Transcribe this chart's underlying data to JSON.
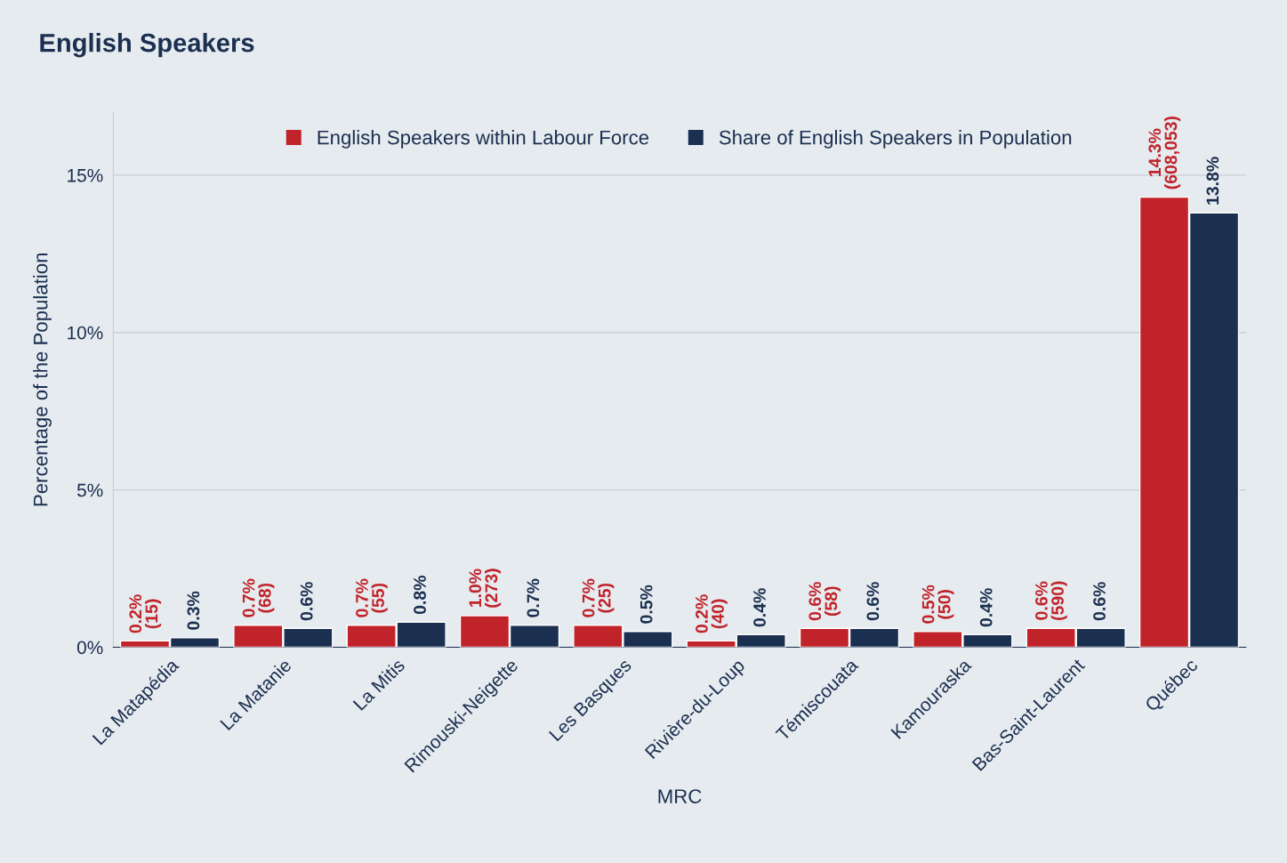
{
  "chart_data": {
    "type": "bar",
    "title": "English Speakers",
    "xlabel": "MRC",
    "ylabel": "Percentage of the Population",
    "categories": [
      "La Matapédia",
      "La Matanie",
      "La Mitis",
      "Rimouski-Neigette",
      "Les Basques",
      "Rivière-du-Loup",
      "Témiscouata",
      "Kamouraska",
      "Bas-Saint-Laurent",
      "Québec"
    ],
    "series": [
      {
        "name": "English Speakers within Labour Force",
        "color": "#c1232a",
        "values": [
          0.2,
          0.7,
          0.7,
          1.0,
          0.7,
          0.2,
          0.6,
          0.5,
          0.6,
          14.3
        ],
        "value_labels": [
          "0.2%\n(15)",
          "0.7%\n(68)",
          "0.7%\n(55)",
          "1.0%\n(273)",
          "0.7%\n(25)",
          "0.2%\n(40)",
          "0.6%\n(58)",
          "0.5%\n(50)",
          "0.6%\n(590)",
          "14.3%\n(608,053)"
        ]
      },
      {
        "name": "Share of English Speakers in Population",
        "color": "#1b2f50",
        "values": [
          0.3,
          0.6,
          0.8,
          0.7,
          0.5,
          0.4,
          0.6,
          0.4,
          0.6,
          13.8
        ],
        "value_labels": [
          "0.3%",
          "0.6%",
          "0.8%",
          "0.7%",
          "0.5%",
          "0.4%",
          "0.6%",
          "0.4%",
          "0.6%",
          "13.8%"
        ]
      }
    ],
    "ylim": [
      0,
      17
    ],
    "yticks": [
      {
        "value": 0,
        "label": "0%"
      },
      {
        "value": 5,
        "label": "5%"
      },
      {
        "value": 10,
        "label": "10%"
      },
      {
        "value": 15,
        "label": "15%"
      }
    ],
    "grid": "y",
    "legend": "top"
  }
}
